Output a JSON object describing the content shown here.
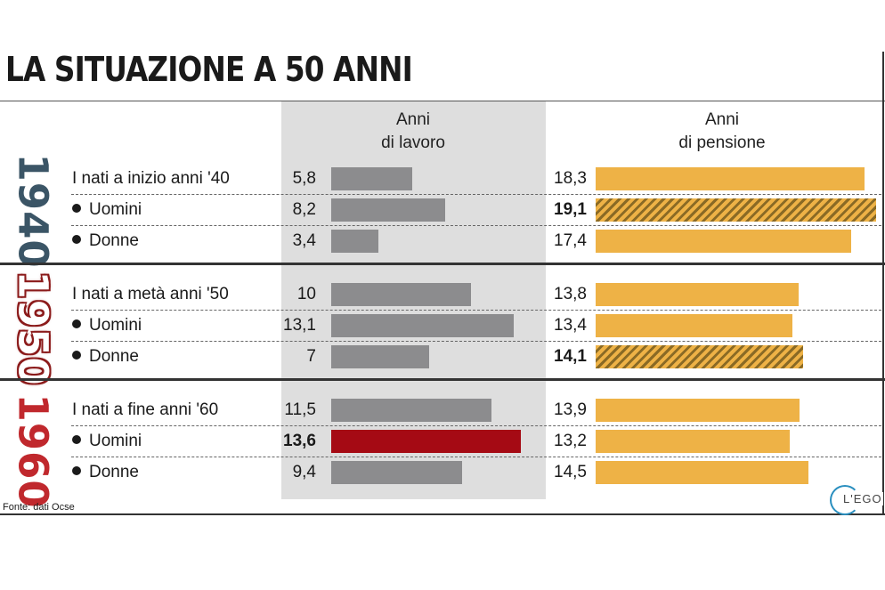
{
  "title": "LA SITUAZIONE A 50 ANNI",
  "headers": {
    "lavoro": [
      "Anni",
      "di lavoro"
    ],
    "pensione": [
      "Anni",
      "di pensione"
    ]
  },
  "source": "Fonte: dati Ocse",
  "logo_text": "L'EGO",
  "colors": {
    "work": "#8c8c8e",
    "work_highlight": "#a50a14",
    "pension": "#eeb246",
    "shade": "#dedede",
    "year_1940": "#3b5566",
    "year_1960": "#c0282d"
  },
  "chart_data": {
    "type": "bar",
    "orientation": "horizontal",
    "title": "LA SITUAZIONE A 50 ANNI",
    "series": [
      {
        "name": "Anni di lavoro",
        "values": [
          5.8,
          8.2,
          3.4,
          10,
          13.1,
          7,
          11.5,
          13.6,
          9.4
        ]
      },
      {
        "name": "Anni di pensione",
        "values": [
          18.3,
          19.1,
          17.4,
          13.8,
          13.4,
          14.1,
          13.9,
          13.2,
          14.5
        ]
      }
    ],
    "groups": [
      {
        "year": "1940",
        "rows": [
          {
            "label": "I nati a inizio anni '40",
            "bullet": false,
            "work": 5.8,
            "work_label": "5,8",
            "pension": 18.3,
            "pension_label": "18,3"
          },
          {
            "label": "Uomini",
            "bullet": true,
            "work": 8.2,
            "work_label": "8,2",
            "pension": 19.1,
            "pension_label": "19,1",
            "pension_highlight": true
          },
          {
            "label": "Donne",
            "bullet": true,
            "work": 3.4,
            "work_label": "3,4",
            "pension": 17.4,
            "pension_label": "17,4"
          }
        ]
      },
      {
        "year": "1950",
        "rows": [
          {
            "label": "I nati a metà anni '50",
            "bullet": false,
            "work": 10,
            "work_label": "10",
            "pension": 13.8,
            "pension_label": "13,8"
          },
          {
            "label": "Uomini",
            "bullet": true,
            "work": 13.1,
            "work_label": "13,1",
            "pension": 13.4,
            "pension_label": "13,4"
          },
          {
            "label": "Donne",
            "bullet": true,
            "work": 7,
            "work_label": "7",
            "pension": 14.1,
            "pension_label": "14,1",
            "pension_highlight": true
          }
        ]
      },
      {
        "year": "1960",
        "rows": [
          {
            "label": "I nati a fine anni '60",
            "bullet": false,
            "work": 11.5,
            "work_label": "11,5",
            "pension": 13.9,
            "pension_label": "13,9"
          },
          {
            "label": "Uomini",
            "bullet": true,
            "work": 13.6,
            "work_label": "13,6",
            "pension": 13.2,
            "pension_label": "13,2",
            "work_highlight": true
          },
          {
            "label": "Donne",
            "bullet": true,
            "work": 9.4,
            "work_label": "9,4",
            "pension": 14.5,
            "pension_label": "14,5"
          }
        ]
      }
    ]
  }
}
